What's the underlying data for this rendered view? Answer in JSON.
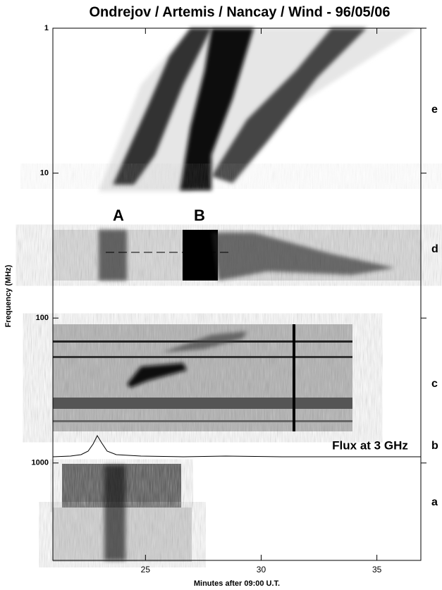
{
  "chart_data": {
    "type": "spectrogram",
    "title": "Ondrejov / Artemis / Nancay / Wind - 96/05/06",
    "x_label": "Minutes after 09:00 U.T.",
    "y_label": "Frequency (MHz)",
    "xlim": [
      21,
      36.9
    ],
    "xticks": [
      25,
      30,
      35
    ],
    "ylim": [
      1,
      4700
    ],
    "yticks": [
      1,
      10,
      100,
      1000
    ],
    "y_scale": "log",
    "y_inverted": true,
    "annotations": [
      "A",
      "B",
      "Flux at 3 GHz"
    ],
    "panel_labels": [
      "e",
      "d",
      "c",
      "b",
      "a"
    ]
  }
}
